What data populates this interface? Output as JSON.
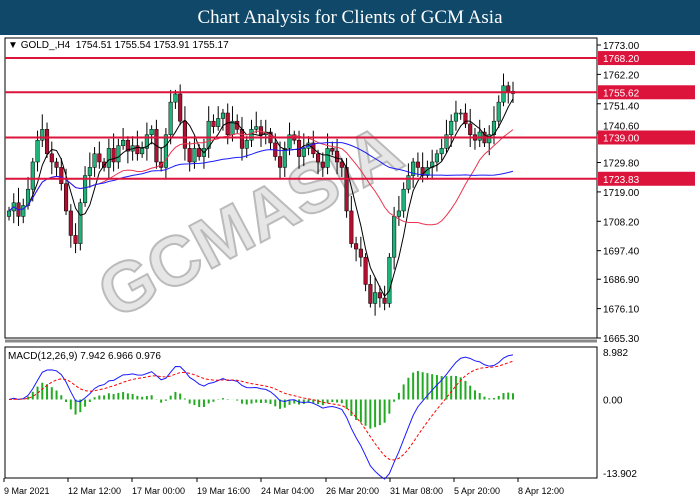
{
  "header": {
    "title": "Chart Analysis for Clients of GCM Asia"
  },
  "symbol_info": {
    "symbol": "GOLD_,H4",
    "ohlc": "1754.51 1755.54 1753.91 1755.17"
  },
  "watermark": "GCMASIA",
  "chart_data": {
    "type": "candlestick",
    "ylim": [
      1665.3,
      1773.0
    ],
    "y_ticks": [
      "1773.00",
      "1762.20",
      "1751.40",
      "1740.60",
      "1729.80",
      "1719.00",
      "1708.20",
      "1697.40",
      "1686.90",
      "1676.10",
      "1665.30"
    ],
    "x_ticks": [
      "9 Mar 2021",
      "12 Mar 12:00",
      "17 Mar 00:00",
      "19 Mar 16:00",
      "24 Mar 04:00",
      "26 Mar 20:00",
      "31 Mar 08:00",
      "5 Apr 20:00",
      "8 Apr 12:00"
    ],
    "levels": [
      {
        "value": 1768.2,
        "label": "1768.20"
      },
      {
        "value": 1755.62,
        "label": "1755.62"
      },
      {
        "value": 1739.0,
        "label": "1739.00"
      },
      {
        "value": 1723.83,
        "label": "1723.83"
      }
    ],
    "closes": [
      1712,
      1715,
      1710,
      1714,
      1720,
      1730,
      1738,
      1742,
      1733,
      1730,
      1728,
      1722,
      1712,
      1703,
      1700,
      1715,
      1725,
      1728,
      1733,
      1730,
      1728,
      1735,
      1730,
      1736,
      1738,
      1734,
      1736,
      1733,
      1735,
      1740,
      1742,
      1730,
      1728,
      1740,
      1752,
      1755,
      1745,
      1735,
      1730,
      1735,
      1732,
      1735,
      1745,
      1743,
      1746,
      1748,
      1740,
      1745,
      1742,
      1735,
      1738,
      1742,
      1743,
      1740,
      1741,
      1737,
      1732,
      1728,
      1735,
      1740,
      1738,
      1732,
      1735,
      1737,
      1733,
      1730,
      1728,
      1735,
      1734,
      1730,
      1728,
      1712,
      1700,
      1698,
      1695,
      1685,
      1678,
      1682,
      1680,
      1678,
      1695,
      1710,
      1712,
      1720,
      1725,
      1730,
      1728,
      1725,
      1728,
      1730,
      1733,
      1735,
      1740,
      1745,
      1748,
      1748,
      1744,
      1740,
      1738,
      1741,
      1737,
      1740,
      1745,
      1752,
      1758,
      1756,
      1755.17
    ],
    "ma_colors": {
      "fast": "#000000",
      "mid": "#e8344e",
      "slow": "#1a1aff"
    },
    "macd": {
      "label": "MACD(12,26,9) 7.942 6.966 0.976",
      "ylim": [
        -13.902,
        8.982
      ],
      "y_ticks": [
        "8.982",
        "0.00",
        "-13.902"
      ],
      "macd_color": "#1a1aff",
      "signal_color": "#ff0000",
      "hist_color": "#22aa22"
    },
    "colors": {
      "bull": "#1fb37a",
      "bear": "#b01030",
      "level": "#dc143c"
    }
  }
}
